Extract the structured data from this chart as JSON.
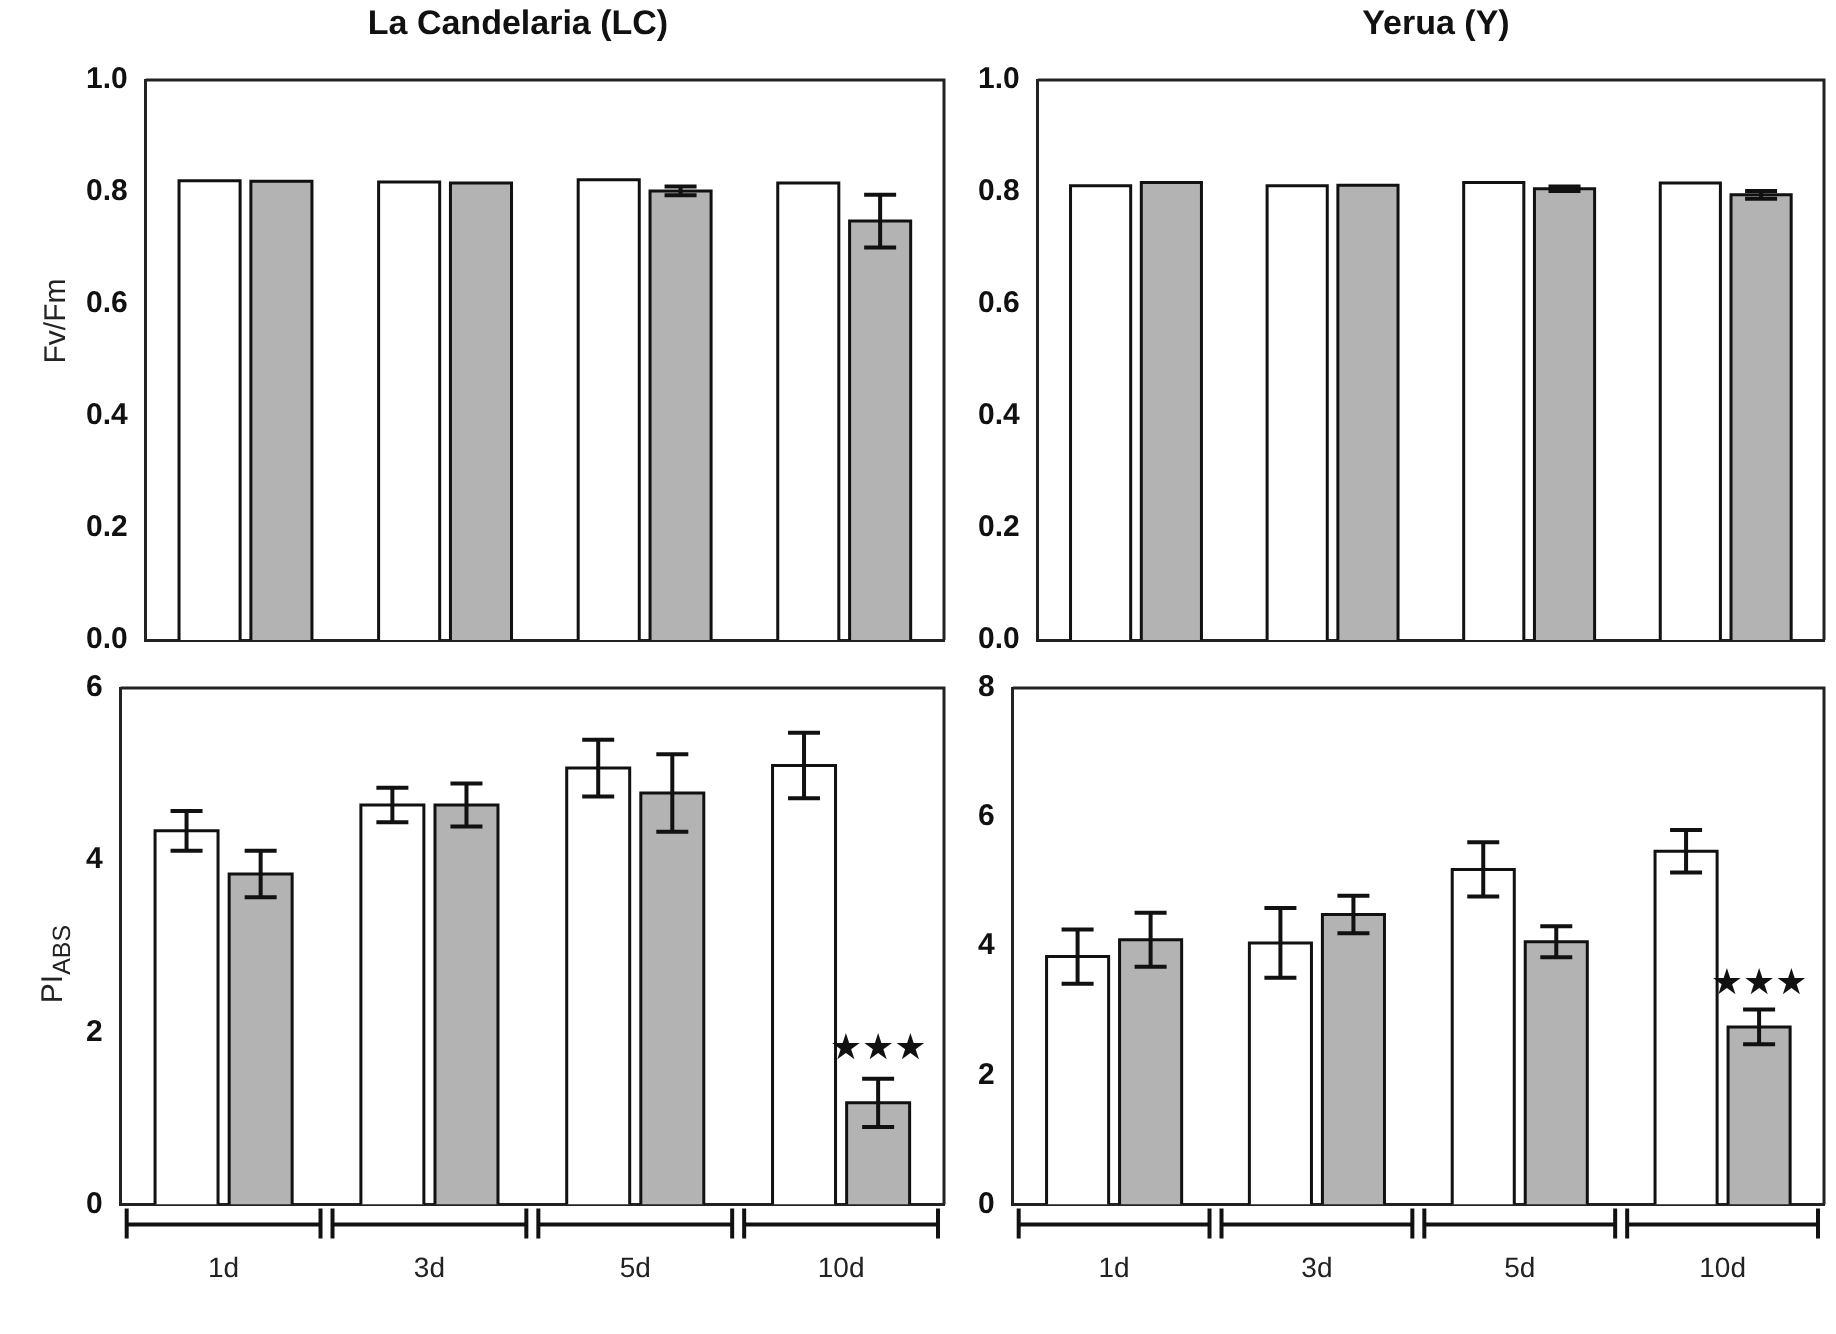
{
  "chart_data": [
    {
      "type": "bar",
      "title": "La Candelaria (LC)",
      "ylabel": "Fv/Fm",
      "categories": [
        null,
        null,
        null,
        null
      ],
      "ylim": [
        0,
        1
      ],
      "yticks": [
        {
          "value": 0,
          "label": "0.0"
        },
        {
          "value": 0.2,
          "label": "0.2"
        },
        {
          "value": 0.4,
          "label": "0.4"
        },
        {
          "value": 0.6,
          "label": "0.6"
        },
        {
          "value": 0.8,
          "label": "0.8"
        },
        {
          "value": 1,
          "label": "1.0"
        }
      ],
      "grid": false,
      "legend": false,
      "tick_labels": "y",
      "series": [
        {
          "color": "#ffffff",
          "values": [
            0.82,
            0.818,
            0.822,
            0.816
          ]
        },
        {
          "color": "#b3b3b3",
          "values": [
            0.819,
            0.816,
            0.802,
            0.748
          ],
          "errors": [
            null,
            null,
            0.008,
            0.047
          ]
        }
      ]
    },
    {
      "type": "bar",
      "title": "Yerua (Y)",
      "categories": [
        null,
        null,
        null,
        null
      ],
      "ylim": [
        0,
        1
      ],
      "yticks": [
        {
          "value": 0,
          "label": "0.0"
        },
        {
          "value": 0.2,
          "label": "0.2"
        },
        {
          "value": 0.4,
          "label": "0.4"
        },
        {
          "value": 0.6,
          "label": "0.6"
        },
        {
          "value": 0.8,
          "label": "0.8"
        },
        {
          "value": 1,
          "label": "1.0"
        }
      ],
      "grid": false,
      "legend": false,
      "tick_labels": "y",
      "series": [
        {
          "color": "#ffffff",
          "values": [
            0.811,
            0.811,
            0.817,
            0.816
          ]
        },
        {
          "color": "#b3b3b3",
          "values": [
            0.817,
            0.812,
            0.806,
            0.795
          ],
          "errors": [
            null,
            null,
            0.004,
            0.007
          ]
        }
      ]
    },
    {
      "type": "bar",
      "ylabel": "PI$_{ABS}$",
      "categories": [
        "1d",
        "3d",
        "5d",
        "10d"
      ],
      "ylim": [
        0,
        6
      ],
      "yticks": [
        0,
        2,
        4,
        6
      ],
      "grid": false,
      "legend": false,
      "annotations": [
        {
          "text": "★★★",
          "x": "10d",
          "y": 1.8
        }
      ],
      "series": [
        {
          "color": "#ffffff",
          "values": [
            4.34,
            4.64,
            5.07,
            5.1
          ],
          "errors": [
            0.23,
            0.2,
            0.33,
            0.38
          ]
        },
        {
          "color": "#b3b3b3",
          "values": [
            3.84,
            4.64,
            4.78,
            1.18
          ],
          "errors": [
            0.27,
            0.25,
            0.45,
            0.28
          ]
        }
      ]
    },
    {
      "type": "bar",
      "categories": [
        "1d",
        "3d",
        "5d",
        "10d"
      ],
      "ylim": [
        0,
        8
      ],
      "yticks": [
        0,
        2,
        4,
        6,
        8
      ],
      "grid": false,
      "legend": false,
      "annotations": [
        {
          "text": "★★★",
          "x": "10d",
          "y": 3.4
        }
      ],
      "series": [
        {
          "color": "#ffffff",
          "values": [
            3.84,
            4.05,
            5.19,
            5.47
          ],
          "errors": [
            0.42,
            0.54,
            0.42,
            0.33
          ]
        },
        {
          "color": "#b3b3b3",
          "values": [
            4.1,
            4.49,
            4.07,
            2.75
          ],
          "errors": [
            0.42,
            0.29,
            0.24,
            0.27
          ]
        }
      ]
    }
  ]
}
